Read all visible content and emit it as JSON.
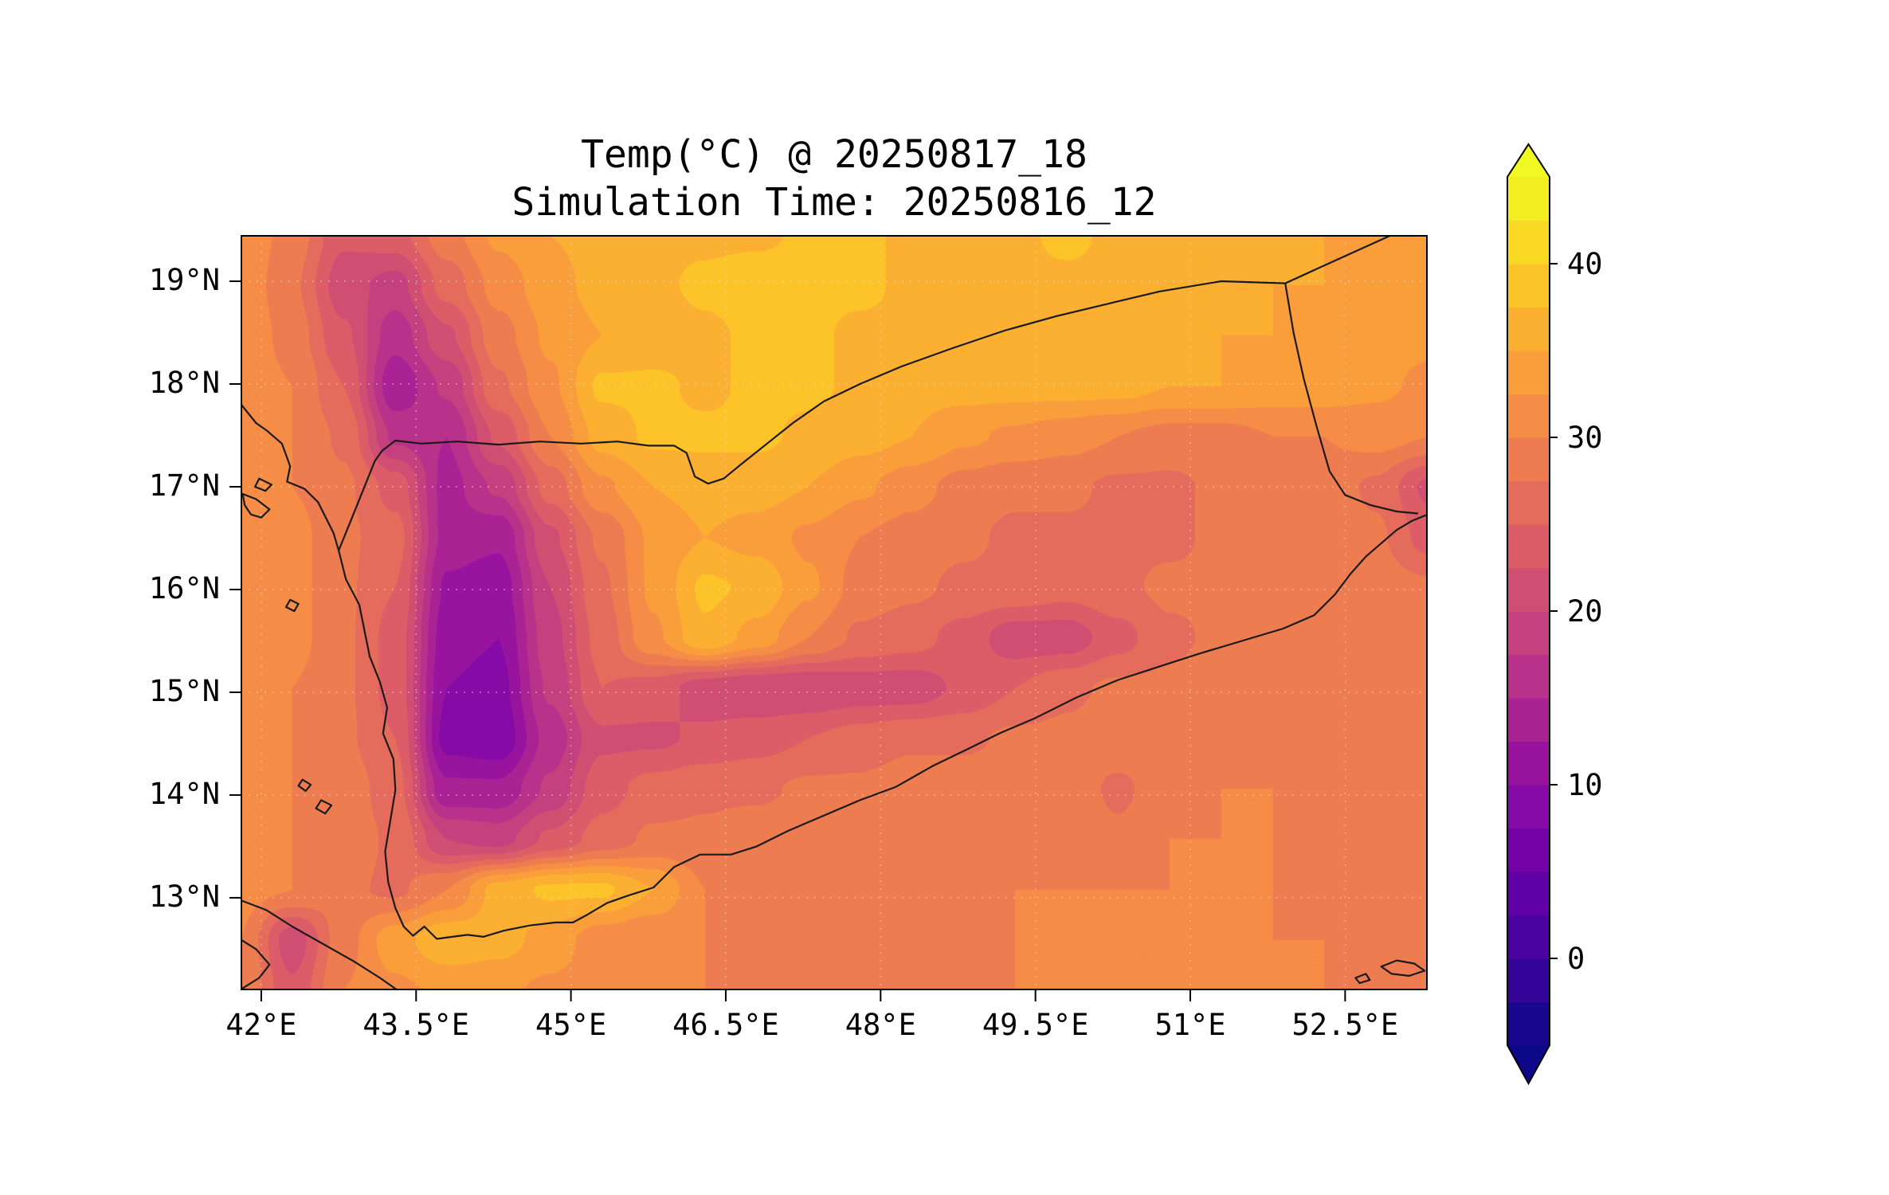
{
  "figure": {
    "title_line1": "Temp(°C) @ 20250817_18",
    "title_line2": "Simulation Time: 20250816_12"
  },
  "chart_data": {
    "type": "heatmap",
    "subtype": "filled-contour-map",
    "title": "Temp(°C) @ 20250817_18",
    "subtitle": "Simulation Time: 20250816_12",
    "variable": "Temperature (°C)",
    "x_axis": {
      "min": 41.8,
      "max": 53.3,
      "ticks": [
        42,
        43.5,
        45,
        46.5,
        48,
        49.5,
        51,
        52.5
      ],
      "tick_labels": [
        "42°E",
        "43.5°E",
        "45°E",
        "46.5°E",
        "48°E",
        "49.5°E",
        "51°E",
        "52.5°E"
      ]
    },
    "y_axis": {
      "min": 12.1,
      "max": 19.45,
      "ticks": [
        13,
        14,
        15,
        16,
        17,
        18,
        19
      ],
      "tick_labels": [
        "13°N",
        "14°N",
        "15°N",
        "16°N",
        "17°N",
        "18°N",
        "19°N"
      ]
    },
    "colorbar": {
      "vmin": -5,
      "vmax": 45,
      "level_step": 2.5,
      "tick_values": [
        0,
        10,
        20,
        30,
        40
      ],
      "tick_labels": [
        "0",
        "10",
        "20",
        "30",
        "40"
      ],
      "colormap": "plasma",
      "extend": "both",
      "extend_over_color": "#f0f921",
      "extend_under_color": "#0d0887",
      "colormap_anchors": [
        [
          0.0,
          "#0d0887"
        ],
        [
          0.1,
          "#41049d"
        ],
        [
          0.2,
          "#6a00a8"
        ],
        [
          0.3,
          "#8f0da4"
        ],
        [
          0.4,
          "#b12a90"
        ],
        [
          0.5,
          "#cc4778"
        ],
        [
          0.6,
          "#e16462"
        ],
        [
          0.7,
          "#f2844b"
        ],
        [
          0.8,
          "#fca636"
        ],
        [
          0.9,
          "#fcce25"
        ],
        [
          1.0,
          "#f0f921"
        ]
      ]
    },
    "grid": {
      "lon_start": 41.8,
      "lon_step": 0.5,
      "n_cols": 24,
      "lat_start": 19.45,
      "lat_step": -0.49,
      "n_rows": 16,
      "temps_c": [
        [
          32,
          29,
          23,
          24,
          29,
          33,
          35,
          36,
          37,
          37,
          37,
          38,
          38,
          37,
          36,
          37,
          38,
          37,
          36,
          36,
          36,
          35,
          34,
          33
        ],
        [
          32,
          28,
          21,
          19,
          26,
          31,
          34,
          36,
          37,
          38,
          39,
          38,
          38,
          37,
          36,
          37,
          37,
          37,
          36,
          36,
          35,
          35,
          34,
          33
        ],
        [
          32,
          29,
          23,
          16,
          22,
          29,
          33,
          35,
          36,
          37,
          38,
          38,
          37,
          37,
          36,
          36,
          37,
          37,
          36,
          35,
          35,
          34,
          34,
          33
        ],
        [
          32,
          30,
          25,
          13,
          18,
          27,
          32,
          38,
          38,
          37,
          38,
          38,
          37,
          36,
          36,
          36,
          36,
          36,
          35,
          35,
          34,
          34,
          33,
          32
        ],
        [
          32,
          30,
          27,
          17,
          15,
          23,
          30,
          36,
          38,
          38,
          38,
          37,
          36,
          35,
          33,
          32,
          31,
          30,
          29,
          29,
          30,
          30,
          31,
          30
        ],
        [
          32,
          30,
          28,
          24,
          14,
          18,
          26,
          32,
          35,
          36,
          36,
          35,
          33,
          31,
          29,
          28,
          28,
          27,
          27,
          28,
          29,
          29,
          27,
          22
        ],
        [
          32,
          31,
          28,
          26,
          14,
          13,
          22,
          28,
          33,
          35,
          34,
          32,
          30,
          29,
          28,
          27,
          27,
          27,
          27,
          28,
          28,
          29,
          28,
          24
        ],
        [
          32,
          31,
          28,
          25,
          12,
          11,
          20,
          27,
          33,
          38,
          37,
          33,
          29,
          28,
          27,
          27,
          26,
          27,
          28,
          28,
          29,
          29,
          29,
          28
        ],
        [
          32,
          31,
          28,
          24,
          11,
          10,
          19,
          26,
          32,
          37,
          34,
          30,
          27,
          26,
          24,
          21,
          21,
          24,
          27,
          28,
          29,
          29,
          29,
          29
        ],
        [
          32,
          30,
          28,
          24,
          10,
          9,
          18,
          25,
          24,
          21,
          20,
          20,
          21,
          21,
          23,
          25,
          27,
          28,
          28,
          29,
          29,
          29,
          29,
          29
        ],
        [
          32,
          30,
          28,
          25,
          9,
          8,
          16,
          22,
          22,
          23,
          24,
          25,
          26,
          27,
          27,
          28,
          28,
          29,
          29,
          29,
          29,
          29,
          29,
          29
        ],
        [
          32,
          30,
          29,
          26,
          13,
          13,
          18,
          24,
          26,
          27,
          27,
          28,
          28,
          29,
          29,
          29,
          29,
          27,
          29,
          30,
          30,
          29,
          29,
          29
        ],
        [
          31,
          30,
          29,
          27,
          20,
          19,
          23,
          26,
          28,
          28,
          29,
          29,
          28,
          28,
          29,
          29,
          30,
          28,
          30,
          30,
          30,
          29,
          29,
          29
        ],
        [
          31,
          30,
          28,
          27,
          30,
          36,
          38,
          38,
          35,
          30,
          29,
          29,
          29,
          29,
          29,
          30,
          30,
          30,
          30,
          30,
          30,
          29,
          29,
          29
        ],
        [
          30,
          21,
          29,
          34,
          37,
          36,
          34,
          31,
          30,
          30,
          29,
          29,
          29,
          29,
          29,
          30,
          30,
          30,
          30,
          30,
          30,
          30,
          29,
          29
        ],
        [
          30,
          23,
          30,
          32,
          33,
          33,
          32,
          31,
          30,
          30,
          29,
          29,
          29,
          29,
          29,
          30,
          30,
          30,
          30,
          30,
          30,
          30,
          29,
          29
        ]
      ]
    },
    "gridlines": {
      "visible": true,
      "style": "dotted",
      "color": "#dddddd"
    }
  },
  "map_overlays": {
    "stroke_color": "#1a1a1a",
    "coastlines": {
      "arabia_coast": [
        41.79,
        17.82,
        41.95,
        17.62,
        42.05,
        17.55,
        42.2,
        17.42,
        42.28,
        17.2,
        42.25,
        17.05,
        42.42,
        16.98,
        42.55,
        16.85,
        42.7,
        16.55,
        42.75,
        16.38,
        42.82,
        16.1,
        42.95,
        15.85,
        43.0,
        15.6,
        43.05,
        15.35,
        43.15,
        15.1,
        43.22,
        14.85,
        43.18,
        14.6,
        43.28,
        14.35,
        43.3,
        14.05,
        43.25,
        13.75,
        43.2,
        13.45,
        43.23,
        13.15,
        43.3,
        12.9,
        43.38,
        12.72,
        43.47,
        12.63,
        43.58,
        12.72,
        43.7,
        12.6,
        43.85,
        12.62,
        44.0,
        12.64,
        44.15,
        12.62,
        44.35,
        12.68,
        44.6,
        12.73,
        44.85,
        12.76,
        45.02,
        12.76,
        45.15,
        12.83,
        45.35,
        12.95,
        45.55,
        13.02,
        45.8,
        13.1,
        46.0,
        13.3,
        46.25,
        13.42,
        46.55,
        13.42,
        46.8,
        13.5,
        47.1,
        13.65,
        47.45,
        13.8,
        47.8,
        13.95,
        48.15,
        14.08,
        48.5,
        14.28,
        48.85,
        14.45,
        49.15,
        14.6,
        49.5,
        14.75,
        49.9,
        14.95,
        50.3,
        15.12,
        50.7,
        15.25,
        51.1,
        15.38,
        51.5,
        15.5,
        51.9,
        15.62,
        52.2,
        15.75,
        52.4,
        15.95,
        52.55,
        16.15,
        52.7,
        16.32,
        52.85,
        16.45,
        53.0,
        16.58,
        53.15,
        16.67,
        53.3,
        16.73
      ],
      "africa_coast": [
        41.79,
        12.98,
        42.05,
        12.88,
        42.3,
        12.72,
        42.6,
        12.55,
        42.9,
        12.38,
        43.15,
        12.22,
        43.35,
        12.08
      ],
      "africa_coast_hook": [
        41.79,
        12.6,
        41.95,
        12.5,
        42.08,
        12.35,
        41.98,
        12.22,
        41.82,
        12.12
      ]
    },
    "borders": {
      "yemen_saudi_border": [
        42.75,
        16.38,
        42.88,
        16.7,
        43.0,
        17.0,
        43.1,
        17.25,
        43.17,
        17.35,
        43.3,
        17.45,
        43.55,
        17.42,
        43.9,
        17.44,
        44.3,
        17.41,
        44.7,
        17.44,
        45.1,
        17.42,
        45.45,
        17.44,
        45.75,
        17.4,
        46.0,
        17.4,
        46.12,
        17.33,
        46.2,
        17.1,
        46.33,
        17.03,
        46.48,
        17.08,
        46.65,
        17.22,
        46.9,
        17.42,
        47.15,
        17.62,
        47.45,
        17.83,
        47.8,
        18.0,
        48.2,
        18.17,
        48.7,
        18.35,
        49.2,
        18.52,
        49.7,
        18.66,
        50.2,
        18.78,
        50.7,
        18.9,
        51.3,
        19.0,
        51.92,
        18.98,
        52.4,
        19.2,
        52.95,
        19.45
      ],
      "yemen_oman_border": [
        51.92,
        18.98,
        52.0,
        18.5,
        52.1,
        18.05,
        52.22,
        17.6,
        52.35,
        17.15,
        52.5,
        16.92,
        52.75,
        16.82,
        53.0,
        16.76,
        53.2,
        16.74
      ]
    },
    "islands": {
      "farasan_1": [
        41.82,
        16.93,
        41.95,
        16.88,
        42.08,
        16.78,
        42.0,
        16.7,
        41.9,
        16.73,
        41.84,
        16.82
      ],
      "farasan_2": [
        41.98,
        17.08,
        42.1,
        17.02,
        42.04,
        16.96,
        41.94,
        17.0
      ],
      "zubair": [
        42.28,
        15.9,
        42.36,
        15.86,
        42.32,
        15.79,
        42.24,
        15.83
      ],
      "hanish_1": [
        42.58,
        13.95,
        42.68,
        13.9,
        42.62,
        13.82,
        42.53,
        13.87
      ],
      "hanish_2": [
        42.4,
        14.15,
        42.48,
        14.1,
        42.43,
        14.04,
        42.36,
        14.09
      ],
      "southeast_islet_1": [
        52.85,
        12.33,
        53.0,
        12.39,
        53.17,
        12.36,
        53.27,
        12.29,
        53.12,
        12.24,
        52.95,
        12.26
      ],
      "southeast_islet_2": [
        52.6,
        12.22,
        52.7,
        12.26,
        52.74,
        12.2,
        52.64,
        12.17
      ]
    }
  }
}
